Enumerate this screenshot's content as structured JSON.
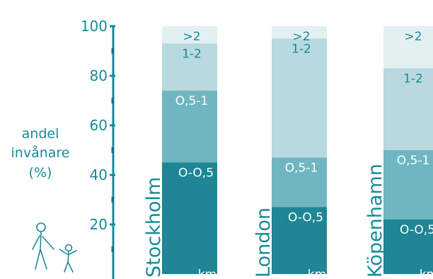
{
  "chart_data": {
    "type": "bar",
    "stacked": true,
    "orientation": "vertical",
    "ylabel_lines": [
      "andel",
      "invånare",
      "(%)"
    ],
    "y_ticks": [
      20,
      40,
      60,
      80,
      100
    ],
    "ylim": [
      0,
      100
    ],
    "grid": false,
    "unit_label": "km",
    "categories": [
      "Stockholm",
      "London",
      "Köpenhamn"
    ],
    "series": [
      {
        "name": "O-O,5",
        "values": [
          45,
          27,
          22
        ],
        "color": "#1e8694"
      },
      {
        "name": "O,5-1",
        "values": [
          29,
          20,
          28
        ],
        "color": "#6fb6c2"
      },
      {
        "name": "1-2",
        "values": [
          19,
          48,
          33
        ],
        "color": "#b7d9df"
      },
      {
        "name": ">2",
        "values": [
          7,
          5,
          17
        ],
        "color": "#e2f0f2"
      }
    ],
    "visible_labels": [
      [
        "O-O,5",
        "O,5-1",
        "1-2",
        ">2"
      ],
      [
        "O-O,5",
        "O,5-1",
        "1-2",
        ">2"
      ],
      [
        "O-O,5",
        "O,5-1",
        "1-2",
        ">2"
      ]
    ],
    "colors": {
      "axis": "#178a98",
      "text": "#1b8a99",
      "label_on_light": "#1b8a99",
      "label_on_dark": "#ffffff"
    },
    "icons": [
      "adult-child-walking-icon"
    ]
  }
}
